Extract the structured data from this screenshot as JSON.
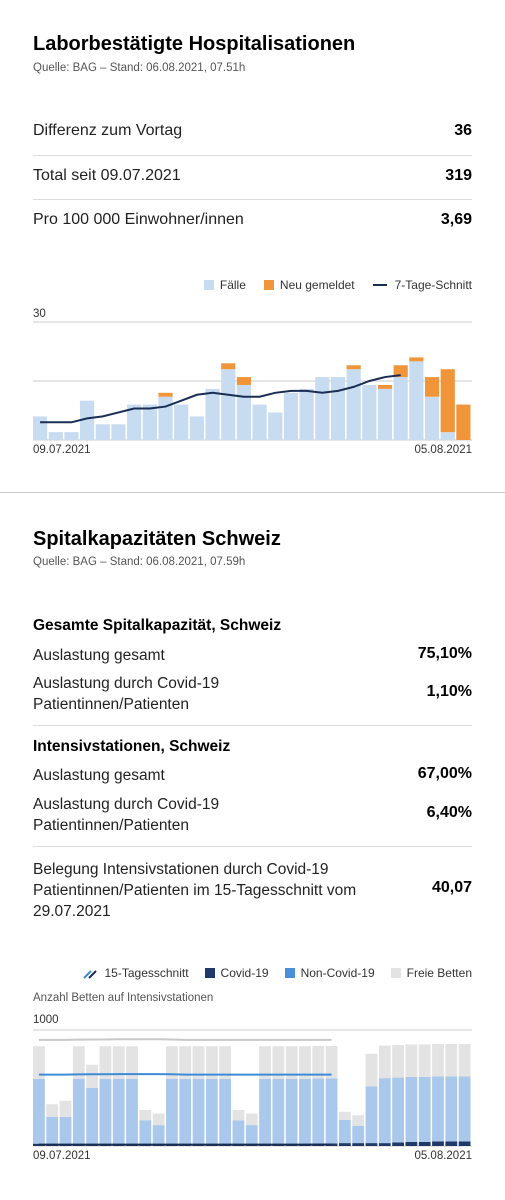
{
  "section1": {
    "title": "Laborbestätigte Hospitalisationen",
    "source": "Quelle: BAG – Stand: 06.08.2021, 07.51h",
    "rows": [
      {
        "label": "Differenz zum Vortag",
        "value": "36"
      },
      {
        "label": "Total seit 09.07.2021",
        "value": "319"
      },
      {
        "label": "Pro 100 000 Einwohner/innen",
        "value": "3,69"
      }
    ],
    "legend": {
      "cases": "Fälle",
      "new": "Neu gemeldet",
      "avg": "7-Tage-Schnitt"
    }
  },
  "section2": {
    "title": "Spitalkapazitäten Schweiz",
    "source": "Quelle: BAG – Stand: 06.08.2021, 07.59h",
    "group1": {
      "heading": "Gesamte Spitalkapazität, Schweiz",
      "row1_label": "Auslastung gesamt",
      "row1_value": "75,10%",
      "row2_label_line1": "Auslastung durch Covid-19",
      "row2_label_line2": "Patientinnen/Patienten",
      "row2_value": "1,10%"
    },
    "group2": {
      "heading": "Intensivstationen, Schweiz",
      "row1_label": "Auslastung gesamt",
      "row1_value": "67,00%",
      "row2_label_line1": "Auslastung durch Covid-19",
      "row2_label_line2": "Patientinnen/Patienten",
      "row2_value": "6,40%"
    },
    "belegung": {
      "line1": "Belegung Intensivstationen durch Covid-19",
      "line2": "Patientinnen/Patienten im 15-Tagesschnitt vom",
      "line3": "29.07.2021",
      "value": "40,07"
    },
    "legend": {
      "avg15": "15-Tagesschnitt",
      "covid": "Covid-19",
      "noncovid": "Non-Covid-19",
      "free": "Freie Betten"
    },
    "chart_title": "Anzahl Betten auf Intensivstationen"
  },
  "colors": {
    "cases": "#c7dcf0",
    "new": "#f0953a",
    "avg": "#1a2e55",
    "covid": "#1f3a68",
    "noncovid": "#a9c8ec",
    "free": "#e3e3e3",
    "avg15": "#3d8ad6"
  },
  "chart_data": [
    {
      "type": "bar",
      "x_start": "09.07.2021",
      "x_end": "05.08.2021",
      "ylim": [
        0,
        30
      ],
      "y_ticks": [
        "30"
      ],
      "series": [
        {
          "name": "Fälle",
          "values": [
            6,
            2,
            2,
            10,
            4,
            4,
            9,
            9,
            11,
            9,
            6,
            13,
            18,
            14,
            9,
            7,
            12,
            13,
            16,
            16,
            18,
            14,
            13,
            16,
            20,
            11,
            2,
            0
          ]
        },
        {
          "name": "Neu gemeldet",
          "values": [
            0,
            0,
            0,
            0,
            0,
            0,
            0,
            0,
            1,
            0,
            0,
            0,
            1.5,
            2,
            0,
            0,
            0,
            0,
            0,
            0,
            1,
            0,
            1,
            3,
            1,
            5,
            16,
            9
          ]
        },
        {
          "name": "7-Tage-Schnitt",
          "values": [
            4.5,
            4.5,
            4.5,
            5.5,
            6,
            7,
            8,
            8,
            8.5,
            10,
            11.5,
            12,
            11.5,
            11,
            11,
            12,
            12.5,
            12.5,
            12,
            12.5,
            13.5,
            15,
            16,
            16.5,
            null,
            null,
            null,
            null
          ]
        }
      ]
    },
    {
      "type": "bar",
      "x_start": "09.07.2021",
      "x_end": "05.08.2021",
      "ylabel": "Anzahl Betten auf Intensivstationen",
      "ylim": [
        0,
        1000
      ],
      "y_ticks": [
        "1000"
      ],
      "series": [
        {
          "name": "Covid-19",
          "values": [
            20,
            20,
            20,
            20,
            20,
            20,
            20,
            20,
            20,
            20,
            20,
            20,
            20,
            20,
            20,
            20,
            20,
            20,
            20,
            20,
            20,
            22,
            22,
            25,
            25,
            25,
            25,
            30,
            35,
            35,
            40,
            40,
            40
          ]
        },
        {
          "name": "Non-Covid-19",
          "values": [
            560,
            230,
            230,
            560,
            480,
            560,
            560,
            560,
            200,
            160,
            560,
            560,
            560,
            560,
            560,
            200,
            160,
            560,
            560,
            560,
            560,
            560,
            560,
            200,
            150,
            490,
            560,
            560,
            560,
            560,
            560,
            560,
            560
          ]
        },
        {
          "name": "Freie Betten",
          "values": [
            280,
            110,
            140,
            280,
            200,
            280,
            280,
            280,
            90,
            100,
            280,
            280,
            280,
            280,
            280,
            90,
            100,
            280,
            280,
            280,
            280,
            280,
            280,
            70,
            90,
            280,
            280,
            280,
            280,
            280,
            280,
            280,
            280
          ]
        },
        {
          "name": "15-Tagesschnitt",
          "values": [
            615,
            615,
            615,
            617,
            618,
            618,
            620,
            620,
            620,
            620,
            618,
            615,
            615,
            615,
            615,
            615,
            615,
            615,
            615,
            615,
            615,
            615,
            615,
            null,
            null,
            null,
            null,
            null,
            null,
            null,
            null,
            null,
            null
          ]
        }
      ]
    }
  ]
}
